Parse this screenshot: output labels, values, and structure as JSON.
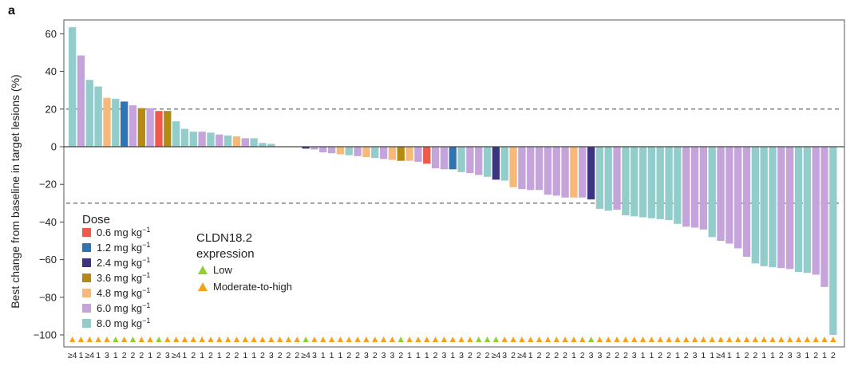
{
  "panel_label": "a",
  "chart_data": {
    "type": "bar",
    "title": "",
    "ylabel": "Best change from baseline in target lesions (%)",
    "ylim": [
      -105,
      68
    ],
    "yticks": [
      60,
      40,
      20,
      0,
      -20,
      -40,
      -60,
      -80,
      -100
    ],
    "reference_lines": [
      20,
      -30
    ],
    "dose_colors": {
      "0.6": "#f05a4a",
      "1.2": "#2f74b5",
      "2.4": "#3b3480",
      "3.6": "#b58a14",
      "4.8": "#f7b97a",
      "6.0": "#c4a4db",
      "8.0": "#93cdcb"
    },
    "expression_colors": {
      "low": "#8ed12a",
      "moderate_to_high": "#f5a21a"
    },
    "bars": [
      {
        "value": 63.5,
        "dose": "8.0",
        "expr": "moderate_to_high",
        "label": "≥4"
      },
      {
        "value": 48.5,
        "dose": "6.0",
        "expr": "moderate_to_high",
        "label": "1"
      },
      {
        "value": 35.5,
        "dose": "8.0",
        "expr": "moderate_to_high",
        "label": "≥4"
      },
      {
        "value": 32,
        "dose": "8.0",
        "expr": "moderate_to_high",
        "label": "1"
      },
      {
        "value": 26,
        "dose": "4.8",
        "expr": "moderate_to_high",
        "label": "3"
      },
      {
        "value": 25.5,
        "dose": "8.0",
        "expr": "low",
        "label": "1"
      },
      {
        "value": 24,
        "dose": "1.2",
        "expr": "moderate_to_high",
        "label": "2"
      },
      {
        "value": 22,
        "dose": "6.0",
        "expr": "low",
        "label": "2"
      },
      {
        "value": 20.5,
        "dose": "3.6",
        "expr": "moderate_to_high",
        "label": "2"
      },
      {
        "value": 20.5,
        "dose": "6.0",
        "expr": "moderate_to_high",
        "label": "1"
      },
      {
        "value": 19,
        "dose": "0.6",
        "expr": "low",
        "label": "2"
      },
      {
        "value": 19,
        "dose": "3.6",
        "expr": "moderate_to_high",
        "label": "3"
      },
      {
        "value": 13.5,
        "dose": "8.0",
        "expr": "moderate_to_high",
        "label": "≥4"
      },
      {
        "value": 9.5,
        "dose": "8.0",
        "expr": "moderate_to_high",
        "label": "1"
      },
      {
        "value": 8,
        "dose": "8.0",
        "expr": "moderate_to_high",
        "label": "2"
      },
      {
        "value": 8,
        "dose": "6.0",
        "expr": "moderate_to_high",
        "label": "1"
      },
      {
        "value": 7.5,
        "dose": "8.0",
        "expr": "moderate_to_high",
        "label": "2"
      },
      {
        "value": 6.5,
        "dose": "6.0",
        "expr": "moderate_to_high",
        "label": "1"
      },
      {
        "value": 6,
        "dose": "8.0",
        "expr": "moderate_to_high",
        "label": "2"
      },
      {
        "value": 5.5,
        "dose": "4.8",
        "expr": "moderate_to_high",
        "label": "2"
      },
      {
        "value": 4.5,
        "dose": "6.0",
        "expr": "moderate_to_high",
        "label": "1"
      },
      {
        "value": 4.5,
        "dose": "8.0",
        "expr": "moderate_to_high",
        "label": "1"
      },
      {
        "value": 2,
        "dose": "8.0",
        "expr": "moderate_to_high",
        "label": "2"
      },
      {
        "value": 1.5,
        "dose": "8.0",
        "expr": "moderate_to_high",
        "label": "3"
      },
      {
        "value": 0,
        "dose": "8.0",
        "expr": "moderate_to_high",
        "label": "2"
      },
      {
        "value": 0,
        "dose": "8.0",
        "expr": "moderate_to_high",
        "label": "2"
      },
      {
        "value": 0,
        "dose": "8.0",
        "expr": "moderate_to_high",
        "label": "2"
      },
      {
        "value": -1,
        "dose": "2.4",
        "expr": "low",
        "label": "≥4"
      },
      {
        "value": -1.5,
        "dose": "6.0",
        "expr": "moderate_to_high",
        "label": "3"
      },
      {
        "value": -3,
        "dose": "6.0",
        "expr": "moderate_to_high",
        "label": "1"
      },
      {
        "value": -3.5,
        "dose": "6.0",
        "expr": "moderate_to_high",
        "label": "1"
      },
      {
        "value": -4,
        "dose": "4.8",
        "expr": "moderate_to_high",
        "label": "1"
      },
      {
        "value": -4.5,
        "dose": "8.0",
        "expr": "moderate_to_high",
        "label": "2"
      },
      {
        "value": -5,
        "dose": "6.0",
        "expr": "moderate_to_high",
        "label": "2"
      },
      {
        "value": -5.5,
        "dose": "4.8",
        "expr": "moderate_to_high",
        "label": "3"
      },
      {
        "value": -6,
        "dose": "8.0",
        "expr": "moderate_to_high",
        "label": "2"
      },
      {
        "value": -6.5,
        "dose": "6.0",
        "expr": "moderate_to_high",
        "label": "3"
      },
      {
        "value": -7,
        "dose": "4.8",
        "expr": "moderate_to_high",
        "label": "3"
      },
      {
        "value": -7.5,
        "dose": "3.6",
        "expr": "low",
        "label": "2"
      },
      {
        "value": -7.5,
        "dose": "4.8",
        "expr": "moderate_to_high",
        "label": "1"
      },
      {
        "value": -8,
        "dose": "6.0",
        "expr": "moderate_to_high",
        "label": "1"
      },
      {
        "value": -9,
        "dose": "0.6",
        "expr": "moderate_to_high",
        "label": "1"
      },
      {
        "value": -11.5,
        "dose": "6.0",
        "expr": "moderate_to_high",
        "label": "2"
      },
      {
        "value": -12,
        "dose": "6.0",
        "expr": "moderate_to_high",
        "label": "3"
      },
      {
        "value": -12,
        "dose": "1.2",
        "expr": "moderate_to_high",
        "label": "1"
      },
      {
        "value": -13.5,
        "dose": "8.0",
        "expr": "moderate_to_high",
        "label": "3"
      },
      {
        "value": -14,
        "dose": "6.0",
        "expr": "moderate_to_high",
        "label": "2"
      },
      {
        "value": -15,
        "dose": "6.0",
        "expr": "low",
        "label": "2"
      },
      {
        "value": -16,
        "dose": "8.0",
        "expr": "low",
        "label": "2"
      },
      {
        "value": -17.5,
        "dose": "2.4",
        "expr": "low",
        "label": "≥4"
      },
      {
        "value": -18,
        "dose": "8.0",
        "expr": "moderate_to_high",
        "label": "3"
      },
      {
        "value": -21.5,
        "dose": "4.8",
        "expr": "moderate_to_high",
        "label": "2"
      },
      {
        "value": -22.5,
        "dose": "6.0",
        "expr": "moderate_to_high",
        "label": "≥4"
      },
      {
        "value": -23,
        "dose": "6.0",
        "expr": "moderate_to_high",
        "label": "1"
      },
      {
        "value": -23,
        "dose": "6.0",
        "expr": "moderate_to_high",
        "label": "2"
      },
      {
        "value": -25.5,
        "dose": "6.0",
        "expr": "moderate_to_high",
        "label": "2"
      },
      {
        "value": -26,
        "dose": "6.0",
        "expr": "moderate_to_high",
        "label": "2"
      },
      {
        "value": -27,
        "dose": "6.0",
        "expr": "moderate_to_high",
        "label": "2"
      },
      {
        "value": -27,
        "dose": "4.8",
        "expr": "moderate_to_high",
        "label": "1"
      },
      {
        "value": -27,
        "dose": "6.0",
        "expr": "moderate_to_high",
        "label": "2"
      },
      {
        "value": -28,
        "dose": "2.4",
        "expr": "low",
        "label": "3"
      },
      {
        "value": -33,
        "dose": "8.0",
        "expr": "moderate_to_high",
        "label": "3"
      },
      {
        "value": -34,
        "dose": "8.0",
        "expr": "moderate_to_high",
        "label": "2"
      },
      {
        "value": -33.5,
        "dose": "6.0",
        "expr": "moderate_to_high",
        "label": "2"
      },
      {
        "value": -36.5,
        "dose": "8.0",
        "expr": "moderate_to_high",
        "label": "2"
      },
      {
        "value": -37,
        "dose": "8.0",
        "expr": "moderate_to_high",
        "label": "3"
      },
      {
        "value": -37.5,
        "dose": "8.0",
        "expr": "moderate_to_high",
        "label": "1"
      },
      {
        "value": -38,
        "dose": "8.0",
        "expr": "moderate_to_high",
        "label": "1"
      },
      {
        "value": -38.5,
        "dose": "8.0",
        "expr": "moderate_to_high",
        "label": "2"
      },
      {
        "value": -39,
        "dose": "8.0",
        "expr": "moderate_to_high",
        "label": "2"
      },
      {
        "value": -41,
        "dose": "8.0",
        "expr": "moderate_to_high",
        "label": "1"
      },
      {
        "value": -42.5,
        "dose": "6.0",
        "expr": "moderate_to_high",
        "label": "2"
      },
      {
        "value": -43,
        "dose": "6.0",
        "expr": "moderate_to_high",
        "label": "3"
      },
      {
        "value": -44,
        "dose": "6.0",
        "expr": "moderate_to_high",
        "label": "1"
      },
      {
        "value": -48,
        "dose": "8.0",
        "expr": "moderate_to_high",
        "label": "1"
      },
      {
        "value": -50,
        "dose": "6.0",
        "expr": "moderate_to_high",
        "label": "≥4"
      },
      {
        "value": -51.5,
        "dose": "6.0",
        "expr": "moderate_to_high",
        "label": "1"
      },
      {
        "value": -54,
        "dose": "6.0",
        "expr": "moderate_to_high",
        "label": "1"
      },
      {
        "value": -58.5,
        "dose": "6.0",
        "expr": "moderate_to_high",
        "label": "2"
      },
      {
        "value": -62,
        "dose": "8.0",
        "expr": "moderate_to_high",
        "label": "2"
      },
      {
        "value": -63.5,
        "dose": "8.0",
        "expr": "moderate_to_high",
        "label": "1"
      },
      {
        "value": -64,
        "dose": "8.0",
        "expr": "moderate_to_high",
        "label": "1"
      },
      {
        "value": -64.5,
        "dose": "6.0",
        "expr": "moderate_to_high",
        "label": "2"
      },
      {
        "value": -65,
        "dose": "6.0",
        "expr": "moderate_to_high",
        "label": "3"
      },
      {
        "value": -66.5,
        "dose": "8.0",
        "expr": "moderate_to_high",
        "label": "3"
      },
      {
        "value": -67,
        "dose": "8.0",
        "expr": "moderate_to_high",
        "label": "1"
      },
      {
        "value": -68,
        "dose": "6.0",
        "expr": "moderate_to_high",
        "label": "2"
      },
      {
        "value": -74.5,
        "dose": "6.0",
        "expr": "moderate_to_high",
        "label": "1"
      },
      {
        "value": -100,
        "dose": "8.0",
        "expr": "moderate_to_high",
        "label": "2"
      }
    ]
  },
  "dose_legend": {
    "title": "Dose",
    "items": [
      {
        "key": "0.6",
        "label": "0.6 mg kg",
        "sup": "−1"
      },
      {
        "key": "1.2",
        "label": "1.2 mg kg",
        "sup": "−1"
      },
      {
        "key": "2.4",
        "label": "2.4 mg kg",
        "sup": "−1"
      },
      {
        "key": "3.6",
        "label": "3.6 mg kg",
        "sup": "−1"
      },
      {
        "key": "4.8",
        "label": "4.8 mg kg",
        "sup": "−1"
      },
      {
        "key": "6.0",
        "label": "6.0 mg kg",
        "sup": "−1"
      },
      {
        "key": "8.0",
        "label": "8.0 mg kg",
        "sup": "−1"
      }
    ]
  },
  "expression_legend": {
    "title_line1": "CLDN18.2",
    "title_line2": "expression",
    "items": [
      {
        "key": "low",
        "label": "Low"
      },
      {
        "key": "moderate_to_high",
        "label": "Moderate-to-high"
      }
    ]
  }
}
